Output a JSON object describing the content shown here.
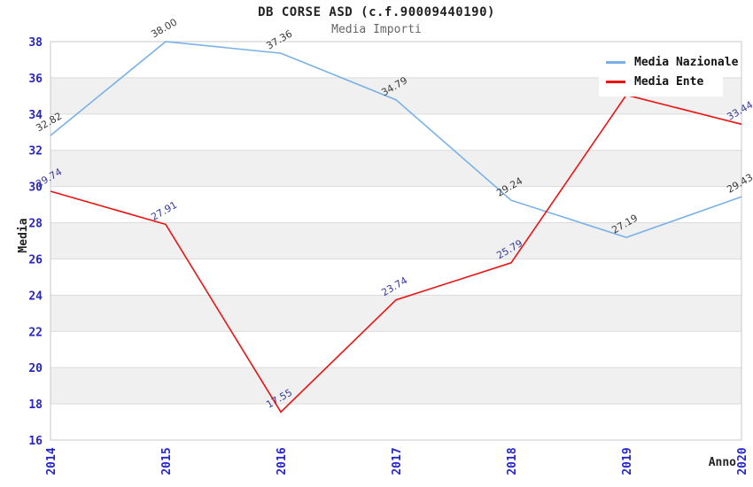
{
  "header": {
    "title": "DB CORSE ASD (c.f.90009440190)",
    "subtitle": "Media Importi"
  },
  "chart_data": {
    "type": "line",
    "x": [
      "2014",
      "2015",
      "2016",
      "2017",
      "2018",
      "2019",
      "2020"
    ],
    "xlabel": "Anno",
    "ylabel": "Media",
    "ylim": [
      16,
      38
    ],
    "ytick_step": 2,
    "grid": "alternating horizontal gray bands with light gridlines",
    "legend_position": "top-right",
    "series": [
      {
        "name": "Media Nazionale",
        "color": "#79b1e7",
        "label_color": "#3a3a3a",
        "values": [
          32.82,
          38.0,
          37.36,
          34.79,
          29.24,
          27.19,
          29.43
        ],
        "labels": [
          "32.82",
          "38.00",
          "37.36",
          "34.79",
          "29.24",
          "27.19",
          "29.43"
        ]
      },
      {
        "name": "Media Ente",
        "color": "#ee1111",
        "label_color": "#38389a",
        "values": [
          29.74,
          27.91,
          17.55,
          23.74,
          25.79,
          35.05,
          33.44
        ],
        "labels": [
          "29.74",
          "27.91",
          "17.55",
          "23.74",
          "25.79",
          "",
          "33.44"
        ]
      }
    ],
    "colors": {
      "axis_tick_label": "#2626cc",
      "band_fill": "#f0f0f0",
      "grid_line": "#dcdcdc",
      "plot_border": "#c8c8c8",
      "axis_title": "#222222"
    }
  }
}
